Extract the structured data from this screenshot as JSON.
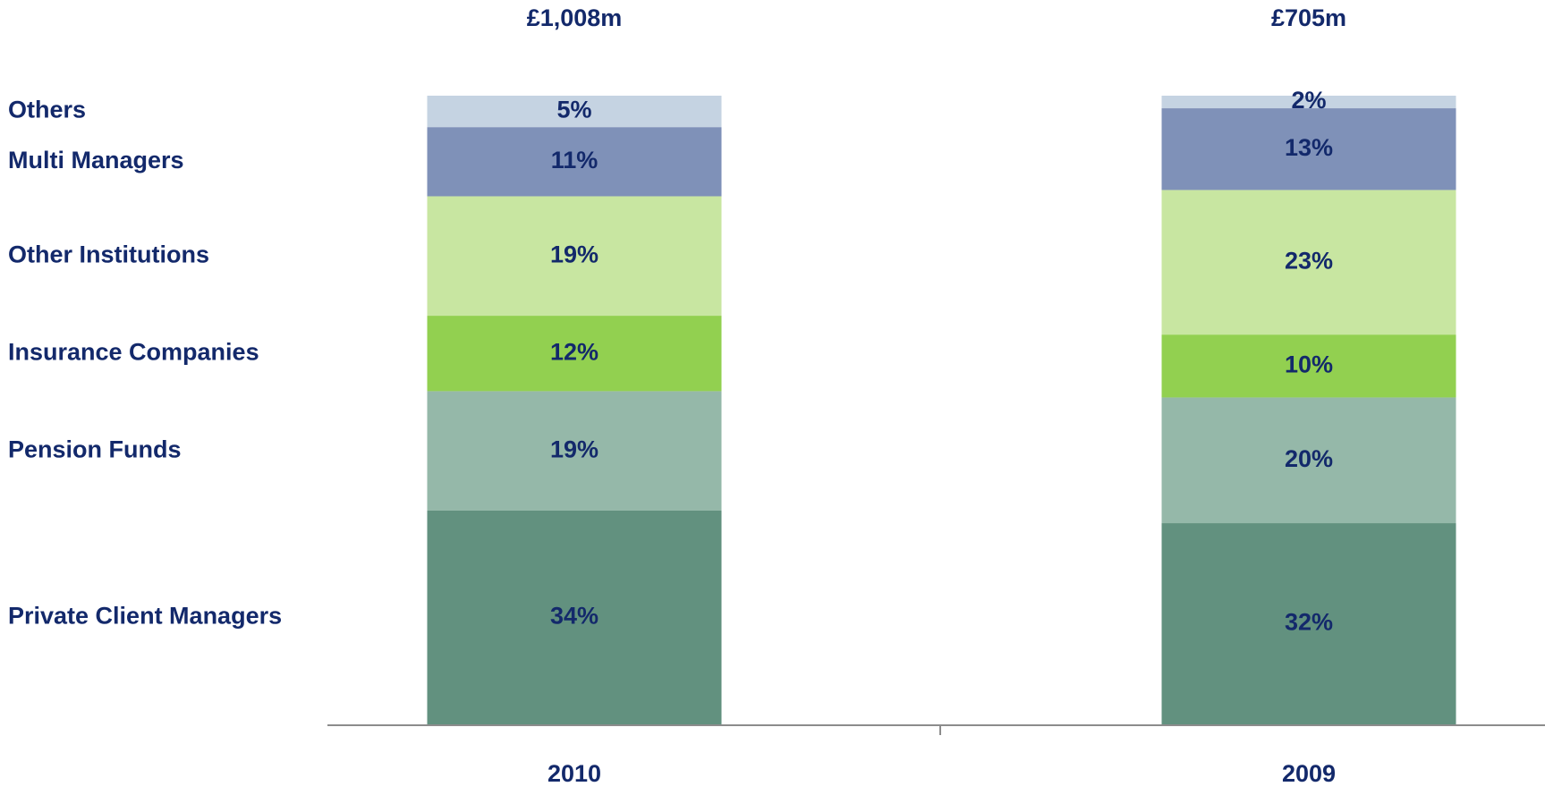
{
  "chart_data": {
    "type": "stacked_bar",
    "categories": [
      "2010",
      "2009"
    ],
    "category_totals": [
      "£1,008m",
      "£705m"
    ],
    "ylim": [
      0,
      100
    ],
    "series": [
      {
        "name": "Private Client Managers",
        "color": "#62917f",
        "values": [
          34,
          32
        ],
        "value_labels": [
          "34%",
          "32%"
        ]
      },
      {
        "name": "Pension Funds",
        "color": "#95b8a9",
        "values": [
          19,
          20
        ],
        "value_labels": [
          "19%",
          "20%"
        ]
      },
      {
        "name": "Insurance Companies",
        "color": "#92d050",
        "values": [
          12,
          10
        ],
        "value_labels": [
          "12%",
          "10%"
        ]
      },
      {
        "name": "Other Institutions",
        "color": "#c8e6a1",
        "values": [
          19,
          23
        ],
        "value_labels": [
          "19%",
          "23%"
        ]
      },
      {
        "name": "Multi Managers",
        "color": "#7f91b8",
        "values": [
          11,
          13
        ],
        "value_labels": [
          "11%",
          "13%"
        ]
      },
      {
        "name": "Others",
        "color": "#c5d3e2",
        "values": [
          5,
          2
        ],
        "value_labels": [
          "5%",
          "2%"
        ]
      }
    ]
  }
}
